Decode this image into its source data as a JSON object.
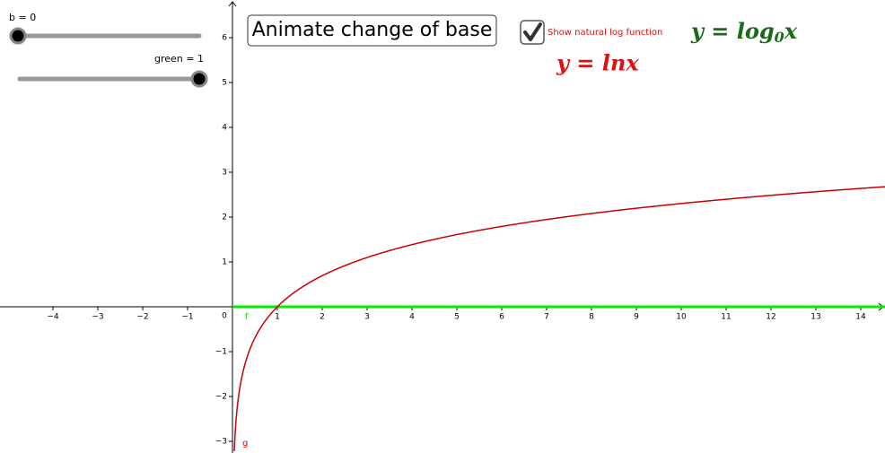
{
  "sliders": [
    {
      "label": "b = 0"
    },
    {
      "label": "green = 1"
    }
  ],
  "button": "Animate change of base",
  "checkbox": {
    "label": "Show natural log function",
    "checked": true
  },
  "formulas": [
    {
      "lead": "y = log",
      "sub": "0",
      "tail": "x",
      "color": "#1a6a1a"
    },
    {
      "lead": "y = lnx",
      "color": "#e01010"
    }
  ],
  "graph": {
    "xlim": [
      -5.18,
      14.54
    ],
    "ylim": [
      -3.26,
      6.84
    ],
    "origin_label": "0",
    "xticks": [
      {
        "value": -4,
        "label": "−4"
      },
      {
        "value": -3,
        "label": "−3"
      },
      {
        "value": -2,
        "label": "−2"
      },
      {
        "value": -1,
        "label": "−1"
      },
      1,
      2,
      3,
      4,
      5,
      6,
      7,
      8,
      9,
      10,
      11,
      12,
      13,
      14
    ],
    "yticks": [
      {
        "value": -3,
        "label": "−3"
      },
      {
        "value": -2,
        "label": "−2"
      },
      {
        "value": -1,
        "label": "−1"
      },
      1,
      2,
      3,
      4,
      5,
      6
    ],
    "curves": [
      {
        "name": "f",
        "color": "#00ee00"
      },
      {
        "name": "g",
        "color": "#cc0000"
      }
    ]
  }
}
